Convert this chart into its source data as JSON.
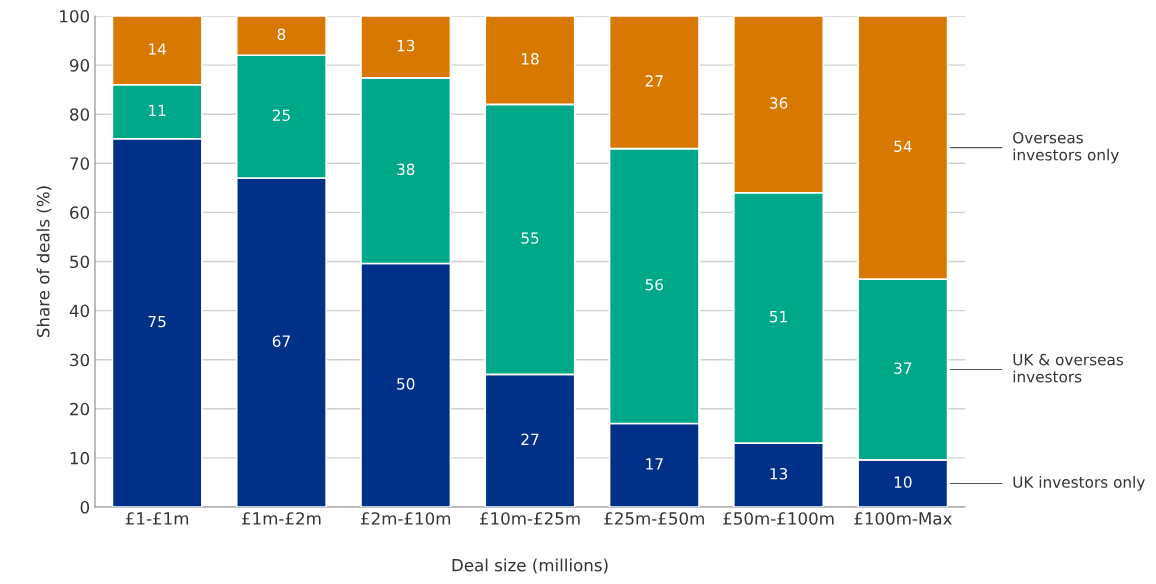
{
  "chart_data": {
    "type": "bar",
    "stacked": true,
    "xlabel": "Deal size (millions)",
    "ylabel": "Share of deals (%)",
    "categories": [
      "£1-£1m",
      "£1m-£2m",
      "£2m-£10m",
      "£10m-£25m",
      "£25m-£50m",
      "£50m-£100m",
      "£100m-Max"
    ],
    "series": [
      {
        "name": "UK investors only",
        "color": "#003087",
        "values": [
          75,
          67,
          49.6,
          27,
          17,
          13,
          9.6
        ],
        "value_labels": [
          "75",
          "67",
          "50",
          "27",
          "17",
          "13",
          "10"
        ]
      },
      {
        "name": "UK & overseas investors",
        "color": "#00a88a",
        "values": [
          11,
          25,
          37.8,
          55,
          56,
          51,
          36.8
        ],
        "value_labels": [
          "11",
          "25",
          "38",
          "55",
          "56",
          "51",
          "37"
        ]
      },
      {
        "name": "Overseas investors only",
        "color": "#d97800",
        "values": [
          14,
          8,
          12.6,
          18,
          27,
          36,
          53.6
        ],
        "value_labels": [
          "14",
          "8",
          "13",
          "18",
          "27",
          "36",
          "54"
        ]
      }
    ],
    "ylim": [
      0,
      100
    ],
    "yticks": [
      0,
      10,
      20,
      30,
      40,
      50,
      60,
      70,
      80,
      90,
      100
    ],
    "grid": "y"
  }
}
